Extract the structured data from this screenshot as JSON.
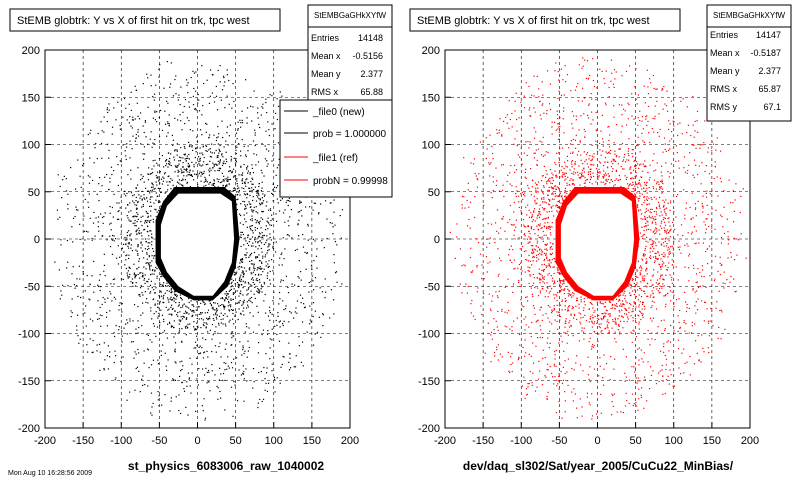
{
  "panels": [
    {
      "title": "StEMB globtrk: Y vs X of first hit on trk, tpc west",
      "stats": {
        "name": "StEMBGaGHkXYfW",
        "rows": [
          {
            "label": "Entries",
            "value": "14148"
          },
          {
            "label": "Mean x",
            "value": "-0.5156"
          },
          {
            "label": "Mean y",
            "value": "2.377"
          },
          {
            "label": "RMS x",
            "value": "65.88"
          }
        ]
      },
      "legend": [
        {
          "label": "_file0 (new)",
          "color": "#000000"
        },
        {
          "label": "prob = 1.000000",
          "color": "#000000"
        },
        {
          "label": "_file1 (ref)",
          "color": "#ff0000"
        },
        {
          "label": "probN = 0.99998",
          "color": "#ff0000"
        }
      ],
      "xlabel": "st_physics_6083006_raw_1040002",
      "color": "#000000"
    },
    {
      "title": "StEMB globtrk: Y vs X of first hit on trk, tpc west",
      "stats": {
        "name": "StEMBGaGHkXYfW",
        "rows": [
          {
            "label": "Entries",
            "value": "14147"
          },
          {
            "label": "Mean x",
            "value": "-0.5187"
          },
          {
            "label": "Mean y",
            "value": "2.377"
          },
          {
            "label": "RMS x",
            "value": "65.87"
          },
          {
            "label": "RMS y",
            "value": "67.1"
          }
        ]
      },
      "xlabel": "dev/daq_sl302/Sat/year_2005/CuCu22_MinBias/",
      "color": "#ff0000"
    }
  ],
  "footer_note": "Mon Aug 10 16:28:56 2009",
  "chart_data": [
    {
      "type": "scatter",
      "title": "StEMB globtrk: Y vs X of first hit on trk, tpc west",
      "xlabel": "st_physics_6083006_raw_1040002",
      "ylabel": "",
      "xlim": [
        -200,
        200
      ],
      "ylim": [
        -200,
        200
      ],
      "xticks": [
        -200,
        -150,
        -100,
        -50,
        0,
        50,
        100,
        150,
        200
      ],
      "yticks": [
        -200,
        -150,
        -100,
        -50,
        0,
        50,
        100,
        150,
        200
      ],
      "grid": true,
      "marker_color": "#000000",
      "ring_vertices": [
        [
          -5,
          -65
        ],
        [
          20,
          -65
        ],
        [
          40,
          -50
        ],
        [
          50,
          -30
        ],
        [
          55,
          0
        ],
        [
          50,
          45
        ],
        [
          35,
          55
        ],
        [
          -30,
          55
        ],
        [
          -45,
          40
        ],
        [
          -55,
          20
        ],
        [
          -55,
          -25
        ],
        [
          -45,
          -40
        ],
        [
          -30,
          -55
        ]
      ],
      "inner_boundary_vertices": [
        [
          -5,
          -60
        ],
        [
          20,
          -60
        ],
        [
          35,
          -45
        ],
        [
          45,
          -25
        ],
        [
          48,
          0
        ],
        [
          45,
          40
        ],
        [
          30,
          48
        ],
        [
          -25,
          48
        ],
        [
          -40,
          35
        ],
        [
          -48,
          15
        ],
        [
          -48,
          -20
        ],
        [
          -40,
          -35
        ],
        [
          -25,
          -50
        ]
      ],
      "entries": 14148
    },
    {
      "type": "scatter",
      "title": "StEMB globtrk: Y vs X of first hit on trk, tpc west",
      "xlabel": "dev/daq_sl302/Sat/year_2005/CuCu22_MinBias/",
      "ylabel": "",
      "xlim": [
        -200,
        200
      ],
      "ylim": [
        -200,
        200
      ],
      "xticks": [
        -200,
        -150,
        -100,
        -50,
        0,
        50,
        100,
        150,
        200
      ],
      "yticks": [
        -200,
        -150,
        -100,
        -50,
        0,
        50,
        100,
        150,
        200
      ],
      "grid": true,
      "marker_color": "#ff0000",
      "ring_vertices": [
        [
          -5,
          -65
        ],
        [
          20,
          -65
        ],
        [
          40,
          -50
        ],
        [
          50,
          -30
        ],
        [
          55,
          0
        ],
        [
          50,
          45
        ],
        [
          35,
          55
        ],
        [
          -30,
          55
        ],
        [
          -45,
          40
        ],
        [
          -55,
          20
        ],
        [
          -55,
          -25
        ],
        [
          -45,
          -40
        ],
        [
          -30,
          -55
        ]
      ],
      "inner_boundary_vertices": [
        [
          -5,
          -60
        ],
        [
          20,
          -60
        ],
        [
          35,
          -45
        ],
        [
          45,
          -25
        ],
        [
          48,
          0
        ],
        [
          45,
          40
        ],
        [
          30,
          48
        ],
        [
          -25,
          48
        ],
        [
          -40,
          35
        ],
        [
          -48,
          15
        ],
        [
          -48,
          -20
        ],
        [
          -40,
          -35
        ],
        [
          -25,
          -50
        ]
      ],
      "entries": 14147
    }
  ]
}
